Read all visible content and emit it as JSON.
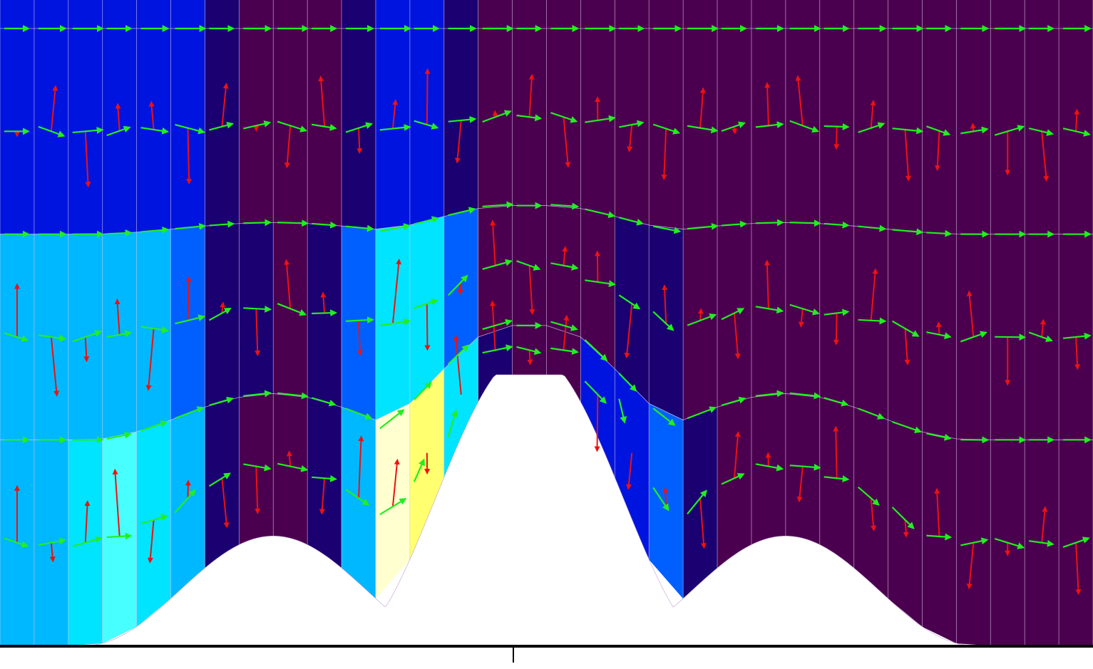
{
  "diagram": {
    "type": "terrain-following-mesh-vector-field",
    "colormap": [
      "#4b004f",
      "#1a0070",
      "#0014e0",
      "#0060ff",
      "#00b8ff",
      "#00e4ff",
      "#48ffff",
      "#ffff70",
      "#ffffd0"
    ],
    "colors": {
      "terrain_fill": "#ffffff",
      "grid_line": "#d8c8e8",
      "vector_horizontal": "#22ee22",
      "vector_vertical": "#ee1111",
      "axis": "#000000"
    },
    "mesh": {
      "columns": 32,
      "layers": 3,
      "value_levels": [
        [
          2,
          2,
          2,
          2,
          2,
          2,
          1,
          0,
          0,
          0,
          1,
          2,
          2,
          1,
          0,
          0,
          0,
          0,
          0,
          0,
          0,
          0,
          0,
          0,
          0,
          0,
          0,
          0,
          0,
          0,
          0,
          0
        ],
        [
          4,
          4,
          4,
          4,
          4,
          3,
          1,
          1,
          0,
          1,
          3,
          5,
          5,
          3,
          0,
          0,
          0,
          0,
          1,
          1,
          0,
          0,
          0,
          0,
          0,
          0,
          0,
          0,
          0,
          0,
          0,
          0
        ],
        [
          4,
          4,
          5,
          6,
          5,
          4,
          1,
          0,
          0,
          1,
          4,
          8,
          7,
          5,
          1,
          0,
          0,
          2,
          2,
          3,
          1,
          0,
          0,
          0,
          0,
          0,
          0,
          0,
          0,
          0,
          0,
          0
        ]
      ]
    },
    "terrain": {
      "peaks": [
        {
          "center_column": 7.5,
          "height": 0.61
        },
        {
          "center_column": 15.0,
          "height": 1.0
        },
        {
          "center_column": 22.5,
          "height": 0.61
        }
      ]
    },
    "vectors": {
      "rows_per_layer": 2,
      "present": true
    },
    "axis": {
      "tick_count": 1
    }
  }
}
